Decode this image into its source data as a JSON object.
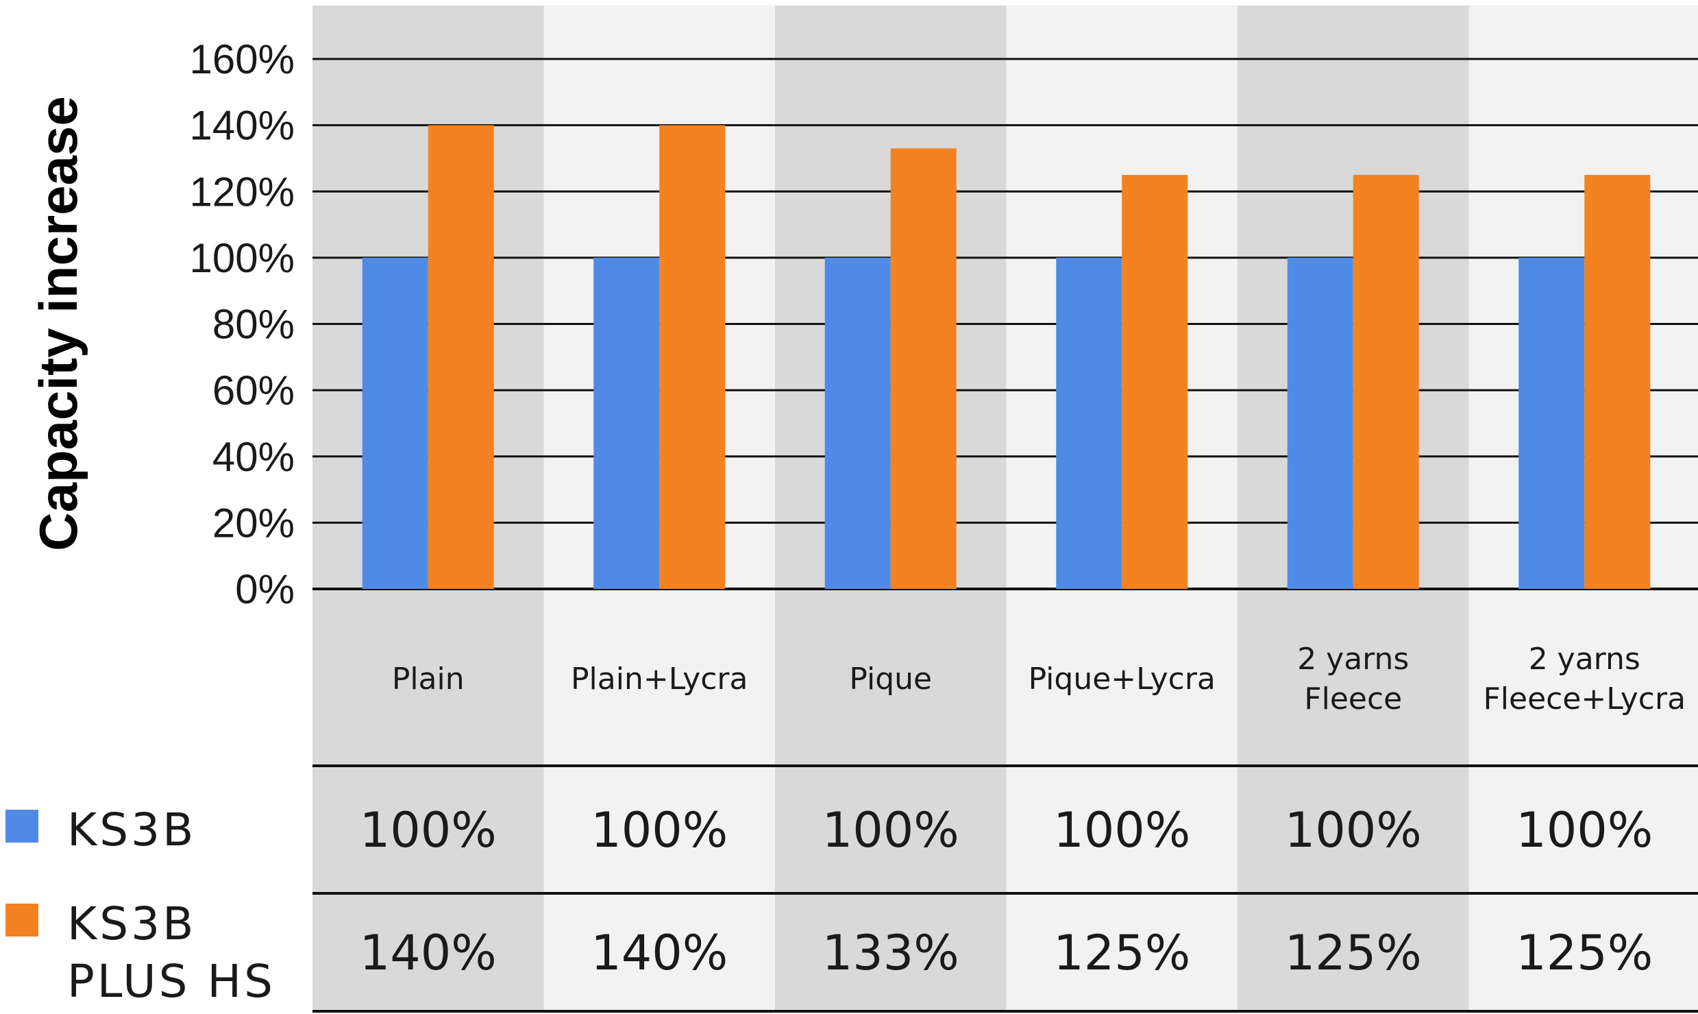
{
  "chart_data": {
    "type": "bar",
    "categories": [
      [
        "Plain"
      ],
      [
        "Plain+Lycra"
      ],
      [
        "Pique"
      ],
      [
        "Pique+Lycra"
      ],
      [
        "2 yarns",
        "Fleece"
      ],
      [
        "2 yarns",
        "Fleece+Lycra"
      ]
    ],
    "series": [
      {
        "name": "KS3B",
        "legend_lines": [
          "KS3B"
        ],
        "color": "#4f8be6",
        "values": [
          100,
          100,
          100,
          100,
          100,
          100
        ]
      },
      {
        "name": "KS3B PLUS HS",
        "legend_lines": [
          "KS3B",
          "PLUS HS"
        ],
        "color": "#f58220",
        "values": [
          140,
          140,
          133,
          125,
          125,
          125
        ]
      }
    ],
    "table_rows": [
      [
        "100%",
        "100%",
        "100%",
        "100%",
        "100%",
        "100%"
      ],
      [
        "140%",
        "140%",
        "133%",
        "125%",
        "125%",
        "125%"
      ]
    ],
    "ylabel": "Capacity increase",
    "ylim": [
      0,
      160
    ],
    "yticks": [
      0,
      20,
      40,
      60,
      80,
      100,
      120,
      140,
      160
    ],
    "ytick_labels": [
      "0%",
      "20%",
      "40%",
      "60%",
      "80%",
      "100%",
      "120%",
      "140%",
      "160%"
    ],
    "grid": true,
    "column_colors": [
      "#d9d9d9",
      "#f2f2f2"
    ]
  }
}
